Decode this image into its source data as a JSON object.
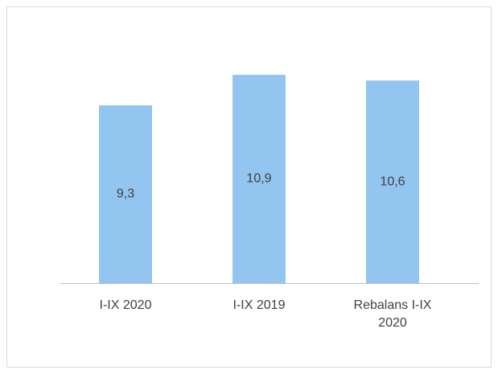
{
  "chart_data": {
    "type": "bar",
    "categories": [
      "I-IX 2020",
      "I-IX 2019",
      "Rebalans I-IX 2020"
    ],
    "values": [
      9.3,
      10.9,
      10.6
    ],
    "value_labels": [
      "9,3",
      "10,9",
      "10,6"
    ],
    "color": "#92c5f0"
  }
}
